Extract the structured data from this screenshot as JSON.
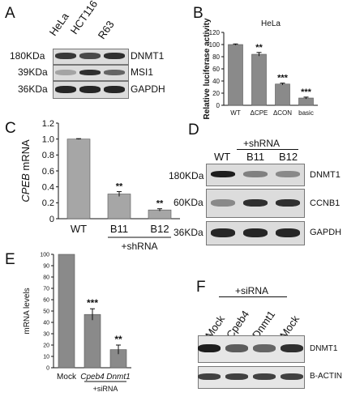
{
  "panels": {
    "A": {
      "label": "A",
      "lanes": [
        "HeLa",
        "HCT116",
        "R63"
      ],
      "rows": [
        {
          "mw": "180KDa",
          "protein": "DNMT1",
          "intensity": [
            0.8,
            0.7,
            0.85
          ]
        },
        {
          "mw": "39KDa",
          "protein": "MSI1",
          "intensity": [
            0.2,
            0.85,
            0.55
          ]
        },
        {
          "mw": "36KDa",
          "protein": "GAPDH",
          "intensity": [
            0.9,
            0.9,
            0.9
          ]
        }
      ]
    },
    "B": {
      "label": "B"
    },
    "C": {
      "label": "C"
    },
    "D": {
      "label": "D",
      "group_label": "+shRNA",
      "lanes": [
        "WT",
        "B11",
        "B12"
      ],
      "rows": [
        {
          "mw": "180KDa",
          "protein": "DNMT1",
          "intensity": [
            0.95,
            0.4,
            0.35
          ]
        },
        {
          "mw": "60KDa",
          "protein": "CCNB1",
          "intensity": [
            0.35,
            0.85,
            0.85
          ]
        },
        {
          "mw": "36KDa",
          "protein": "GAPDH",
          "intensity": [
            0.9,
            0.9,
            0.9
          ]
        }
      ]
    },
    "E": {
      "label": "E"
    },
    "F": {
      "label": "F",
      "group_label": "+siRNA",
      "lanes": [
        "Mock",
        "Cpeb4",
        "Dnmt1",
        "Mock"
      ],
      "rows": [
        {
          "protein": "DNMT1",
          "intensity": [
            0.95,
            0.6,
            0.55,
            0.85
          ]
        },
        {
          "protein": "B-ACTIN",
          "intensity": [
            0.75,
            0.75,
            0.75,
            0.75
          ]
        }
      ]
    }
  },
  "chart_data": [
    {
      "panel": "B",
      "type": "bar",
      "title": "HeLa",
      "ylabel": "Relative luciferase activity",
      "categories": [
        "WT",
        "ΔCPE",
        "ΔCON",
        "basic"
      ],
      "values": [
        100,
        84,
        35,
        12
      ],
      "errors": [
        1,
        3,
        1.5,
        1.5
      ],
      "significance": [
        "",
        "**",
        "***",
        "***"
      ],
      "ylim": [
        0,
        120
      ],
      "yticks": [
        0,
        20,
        40,
        60,
        80,
        100,
        120
      ],
      "grid": false
    },
    {
      "panel": "C",
      "type": "bar",
      "ylabel": "CPEB mRNA",
      "categories": [
        "WT",
        "B11",
        "B12"
      ],
      "group_label": "+shRNA",
      "values": [
        1.0,
        0.31,
        0.11
      ],
      "errors": [
        0.005,
        0.03,
        0.015
      ],
      "significance": [
        "",
        "**",
        "**"
      ],
      "ylim": [
        0,
        1.2
      ],
      "yticks": [
        0,
        0.2,
        0.4,
        0.6,
        0.8,
        1.0,
        1.2
      ],
      "ytick_labels": [
        "0",
        "0.2",
        "0.4",
        "0.6",
        "0.8",
        "1.0",
        "1.2"
      ],
      "grid": false
    },
    {
      "panel": "E",
      "type": "bar",
      "ylabel": "mRNA levels",
      "categories": [
        "Mock",
        "Cpeb4",
        "Dnmt1"
      ],
      "group_label": "+siRNA",
      "values": [
        100,
        47,
        16
      ],
      "errors": [
        0,
        5,
        4
      ],
      "significance": [
        "",
        "***",
        "**"
      ],
      "ylim": [
        0,
        100
      ],
      "yticks": [
        0,
        10,
        20,
        30,
        40,
        50,
        60,
        70,
        80,
        90,
        100
      ],
      "grid": false
    }
  ]
}
